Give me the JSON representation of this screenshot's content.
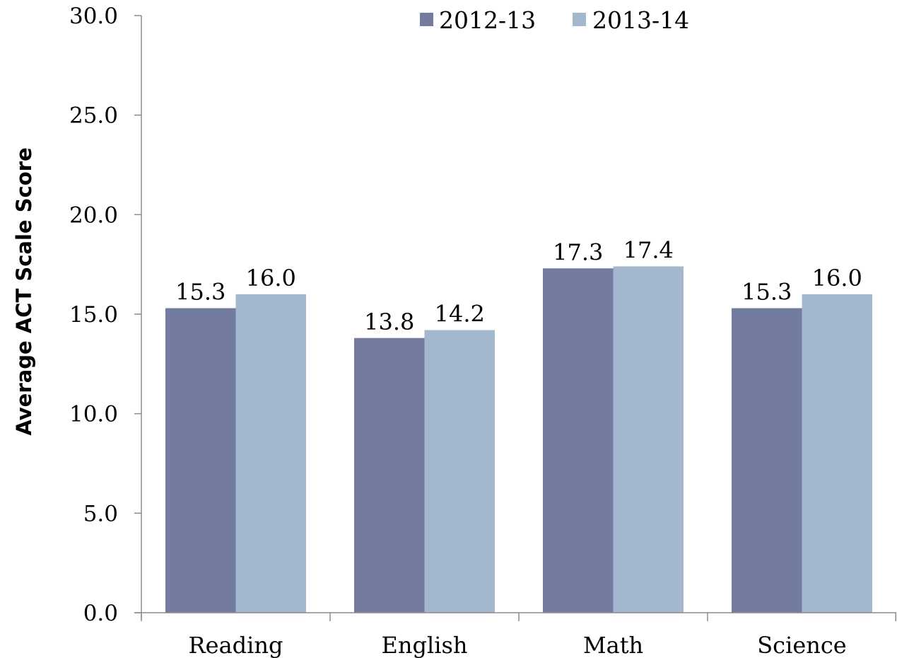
{
  "chart_data": {
    "type": "bar",
    "title": "",
    "xlabel": "",
    "ylabel": "Average ACT Scale Score",
    "categories": [
      "Reading",
      "English",
      "Math",
      "Science"
    ],
    "series": [
      {
        "name": "2012-13",
        "color": "#737ba0",
        "values": [
          15.3,
          13.8,
          17.3,
          15.3
        ],
        "labels": [
          "15.3",
          "13.8",
          "17.3",
          "15.3"
        ]
      },
      {
        "name": "2013-14",
        "color": "#a3b8cf",
        "values": [
          16.0,
          14.2,
          17.4,
          16.0
        ],
        "labels": [
          "16.0",
          "14.2",
          "17.4",
          "16.0"
        ]
      }
    ],
    "ylim": [
      0,
      30
    ],
    "yticks": [
      "0.0",
      "5.0",
      "10.0",
      "15.0",
      "20.0",
      "25.0",
      "30.0"
    ],
    "grid": false,
    "legend_position": "top-center"
  }
}
